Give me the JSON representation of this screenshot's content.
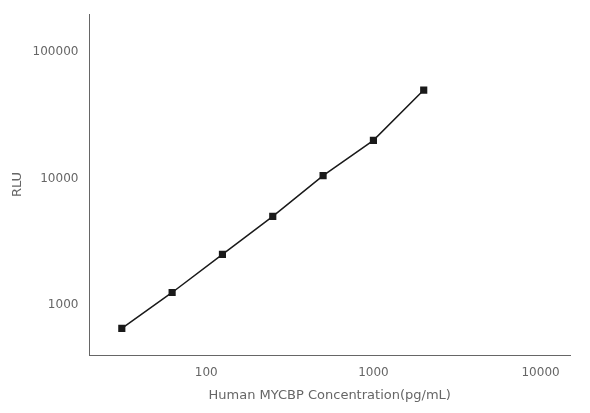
{
  "chart_data": {
    "type": "line",
    "x_label": "Human MYCBP Concentration(pg/mL)",
    "y_label": "RLU",
    "x": [
      31.25,
      62.5,
      125,
      250,
      500,
      1000,
      2000
    ],
    "series": [
      {
        "name": "RLU",
        "color": "#1a1a1a",
        "marker": "square",
        "values": [
          650,
          1250,
          2500,
          5000,
          10500,
          20000,
          50000
        ]
      }
    ],
    "log": true,
    "xlim": [
      20,
      15000
    ],
    "ylim": [
      400,
      200000
    ],
    "xticks": [
      100,
      1000,
      10000
    ],
    "yticks": [
      1000,
      10000,
      100000
    ],
    "grid": false
  }
}
